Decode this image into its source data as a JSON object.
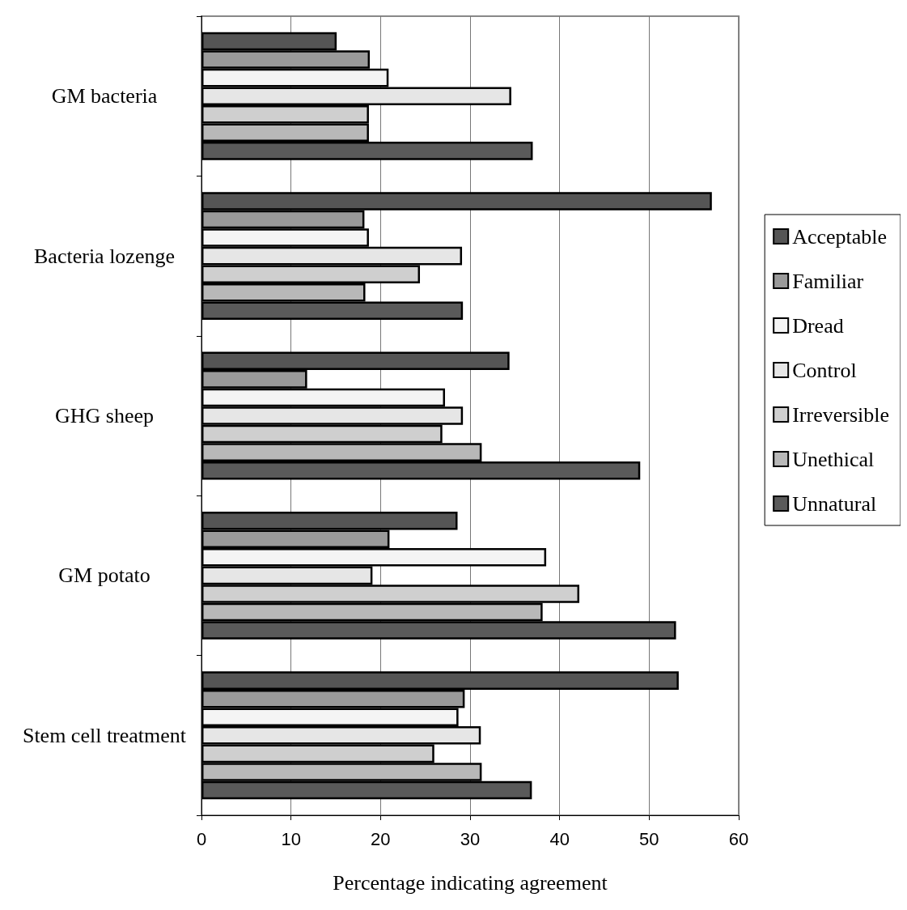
{
  "chart_data": {
    "type": "bar",
    "orientation": "horizontal",
    "xlabel": "Percentage indicating agreement",
    "categories": [
      "GM bacteria",
      "Bacteria lozenge",
      "GHG sheep",
      "GM potato",
      "Stem cell treatment"
    ],
    "series": [
      {
        "name": "Acceptable",
        "color": "#555555",
        "values": [
          15.1,
          57.0,
          34.4,
          28.6,
          53.3
        ]
      },
      {
        "name": "Familiar",
        "color": "#9a9a9a",
        "values": [
          18.8,
          18.2,
          11.8,
          21.0,
          29.4
        ]
      },
      {
        "name": "Dread",
        "color": "#f4f4f4",
        "values": [
          20.9,
          18.7,
          27.2,
          38.5,
          28.7
        ]
      },
      {
        "name": "Control",
        "color": "#e6e6e6",
        "values": [
          34.6,
          29.1,
          29.2,
          19.1,
          31.2
        ]
      },
      {
        "name": "Irreversible",
        "color": "#cfcfcf",
        "values": [
          18.7,
          24.4,
          26.9,
          42.2,
          26.0
        ]
      },
      {
        "name": "Unethical",
        "color": "#b8b8b8",
        "values": [
          18.7,
          18.3,
          31.3,
          38.1,
          31.3
        ]
      },
      {
        "name": "Unnatural",
        "color": "#5a5a5a",
        "values": [
          37.0,
          29.2,
          49.0,
          53.0,
          36.9
        ]
      }
    ],
    "xlim": [
      0,
      60
    ],
    "xticks": [
      0,
      10,
      20,
      30,
      40,
      50,
      60
    ],
    "grid": "x",
    "legend": "right"
  }
}
